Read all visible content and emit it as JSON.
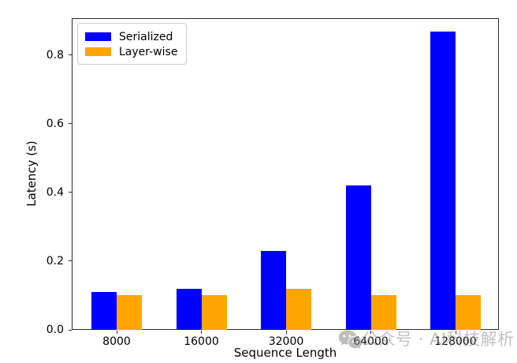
{
  "chart_data": {
    "type": "bar",
    "categories": [
      "8000",
      "16000",
      "32000",
      "64000",
      "128000"
    ],
    "series": [
      {
        "name": "Serialized",
        "color": "#0000ff",
        "values": [
          0.11,
          0.12,
          0.23,
          0.42,
          0.87
        ]
      },
      {
        "name": "Layer-wise",
        "color": "#ffa500",
        "values": [
          0.1,
          0.1,
          0.12,
          0.1,
          0.1
        ]
      }
    ],
    "title": "",
    "xlabel": "Sequence Length",
    "ylabel": "Latency (s)",
    "ylim": [
      0,
      0.908
    ],
    "yticks": [
      0.0,
      0.2,
      0.4,
      0.6,
      0.8
    ],
    "ytick_labels": [
      "0.0",
      "0.2",
      "0.4",
      "0.6",
      "0.8"
    ],
    "legend_position": "upper left",
    "grid": false,
    "axis_color": "#2b2b2b",
    "tick_label_color": "#000000"
  },
  "watermark": {
    "icon": "wechat-icon",
    "text": "公众号 · AI科技解析",
    "color": "#8f8f8f"
  }
}
